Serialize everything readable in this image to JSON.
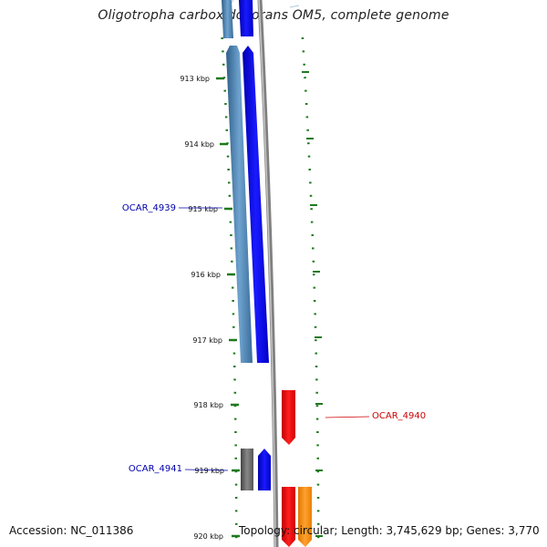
{
  "title": "Oligotropha carboxidovorans OM5, complete genome",
  "accession": "Accession: NC_011386",
  "topology_info": "Topology: circular; Length: 3,745,629 bp; Genes: 3,770",
  "ticks": [
    {
      "label": "913 kbp"
    },
    {
      "label": "914 kbp"
    },
    {
      "label": "915 kbp"
    },
    {
      "label": "916 kbp"
    },
    {
      "label": "917 kbp"
    },
    {
      "label": "918 kbp"
    },
    {
      "label": "919 kbp"
    },
    {
      "label": "920 kbp"
    }
  ],
  "genes": [
    {
      "id": "OCAR_4939",
      "color": "#0000aa"
    },
    {
      "id": "OCAR_4940",
      "color": "#cc0000"
    },
    {
      "id": "OCAR_4941",
      "color": "#0000aa"
    }
  ],
  "colors": {
    "tick": "#1e7a1e",
    "steelblue_feature": "#4682b4",
    "blue_feature": "#0000ff",
    "gray_feature": "#666666",
    "red_feature": "#ff0000",
    "orange_feature": "#ff8c00",
    "backbone": "#808080"
  }
}
